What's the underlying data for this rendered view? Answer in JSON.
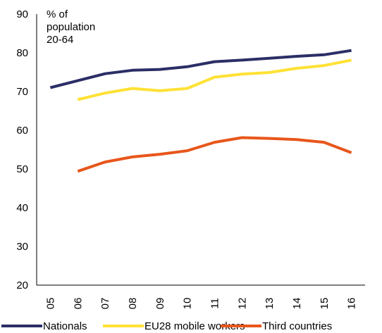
{
  "chart_data": {
    "type": "line",
    "categories": [
      "05",
      "06",
      "07",
      "08",
      "09",
      "10",
      "11",
      "12",
      "13",
      "14",
      "15",
      "16"
    ],
    "series": [
      {
        "name": "Nationals",
        "color": "#2b2e66",
        "values": [
          71.0,
          72.8,
          74.6,
          75.5,
          75.7,
          76.4,
          77.7,
          78.1,
          78.6,
          79.1,
          79.5,
          80.6
        ]
      },
      {
        "name": "EU28 mobile workers",
        "color": "#ffe135",
        "values": [
          null,
          67.9,
          69.6,
          70.8,
          70.2,
          70.8,
          73.7,
          74.5,
          74.9,
          76.0,
          76.7,
          78.1
        ]
      },
      {
        "name": "Third countries",
        "color": "#e8561b",
        "values": [
          null,
          49.4,
          51.8,
          53.1,
          53.8,
          54.7,
          56.9,
          58.1,
          57.9,
          57.6,
          56.9,
          54.2
        ]
      }
    ],
    "ylim": [
      20,
      90
    ],
    "yticks": [
      20,
      30,
      40,
      50,
      60,
      70,
      80,
      90
    ],
    "ylabel_lines": [
      "% of",
      "population",
      "20-64"
    ],
    "legend_position": "bottom",
    "grid": false
  }
}
